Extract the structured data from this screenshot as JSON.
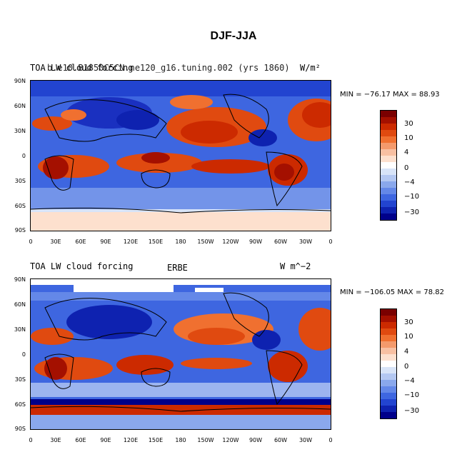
{
  "title": "DJF-JJA",
  "panels": [
    {
      "left_label": "TOA LW cloud forcing",
      "center_label": "b.e10.B1850C5CN.ne120_g16.tuning.002 (yrs 1860)",
      "right_label": "W/m²",
      "minmax": "MIN = −76.17  MAX =  88.93"
    },
    {
      "left_label": "TOA LW cloud forcing",
      "center_label": "ERBE",
      "right_label": "W m^−2",
      "minmax": "MIN = −106.05  MAX =  78.82"
    }
  ],
  "lat_ticks": [
    "90N",
    "60N",
    "30N",
    "0",
    "30S",
    "60S",
    "90S"
  ],
  "lon_ticks": [
    "0",
    "30E",
    "60E",
    "90E",
    "120E",
    "150E",
    "180",
    "150W",
    "120W",
    "90W",
    "60W",
    "30W",
    "0"
  ],
  "colorbar": {
    "labels": [
      "30",
      "10",
      "4",
      "0",
      "−4",
      "−10",
      "−30"
    ],
    "colors": [
      "#7a0000",
      "#a41000",
      "#cc2a00",
      "#e04a10",
      "#f07030",
      "#f49a6c",
      "#f8c0a2",
      "#fde0ce",
      "#ffffff",
      "#d8e4f8",
      "#b4c8f2",
      "#8aa8ec",
      "#6488e8",
      "#3e66e0",
      "#2244d0",
      "#0e22b0",
      "#00008a"
    ]
  },
  "chart_data": {
    "type": "heatmap",
    "title": "DJF-JJA",
    "xlabel": "",
    "ylabel": "",
    "x_ticks": [
      "0",
      "30E",
      "60E",
      "90E",
      "120E",
      "150E",
      "180",
      "150W",
      "120W",
      "90W",
      "60W",
      "30W",
      "0"
    ],
    "y_ticks": [
      "90N",
      "60N",
      "30N",
      "0",
      "30S",
      "60S",
      "90S"
    ],
    "colorbar_levels": [
      30,
      10,
      4,
      0,
      -4,
      -10,
      -30
    ],
    "maps": [
      {
        "label": "b.e10.B1850C5CN.ne120_g16.tuning.002 (yrs 1860)",
        "min": -76.17,
        "max": 88.93
      },
      {
        "label": "ERBE",
        "min": -106.05,
        "max": 78.82
      }
    ]
  }
}
